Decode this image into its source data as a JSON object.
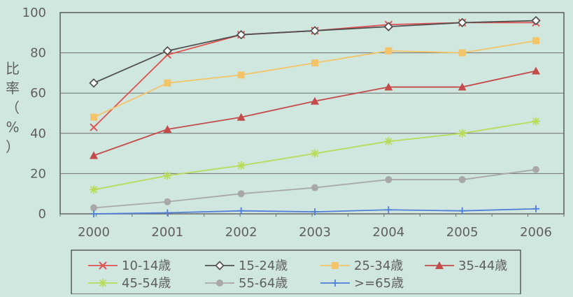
{
  "chart_data": {
    "type": "line",
    "ylabel": "比率（%）",
    "xlabel": "",
    "title": "",
    "ylim": [
      0,
      100
    ],
    "yticks": [
      0,
      20,
      40,
      60,
      80,
      100
    ],
    "categories": [
      "2000",
      "2001",
      "2002",
      "2003",
      "2004",
      "2005",
      "2006"
    ],
    "grid": true,
    "legend_position": "bottom",
    "series": [
      {
        "name": "10-14歳",
        "color": "#e05252",
        "marker": "x",
        "values": [
          43,
          79,
          89,
          91,
          94,
          95,
          95
        ]
      },
      {
        "name": "15-24歳",
        "color": "#4f4f4f",
        "marker": "diamond",
        "values": [
          65,
          81,
          89,
          91,
          93,
          95,
          96
        ]
      },
      {
        "name": "25-34歳",
        "color": "#f4c46a",
        "marker": "square",
        "values": [
          48,
          65,
          69,
          75,
          81,
          80,
          86
        ]
      },
      {
        "name": "35-44歳",
        "color": "#c54a4a",
        "marker": "triangle",
        "values": [
          29,
          42,
          48,
          56,
          63,
          63,
          71
        ]
      },
      {
        "name": "45-54歳",
        "color": "#b8dc5a",
        "marker": "star",
        "values": [
          12,
          19,
          24,
          30,
          36,
          40,
          46
        ]
      },
      {
        "name": "55-64歳",
        "color": "#a8a8a8",
        "marker": "circle",
        "values": [
          3,
          6,
          10,
          13,
          17,
          17,
          22
        ]
      },
      {
        "name": ">=65歳",
        "color": "#4f7fd6",
        "marker": "plus",
        "values": [
          0,
          0.5,
          1.5,
          1,
          2,
          1.5,
          2.5
        ]
      }
    ]
  }
}
